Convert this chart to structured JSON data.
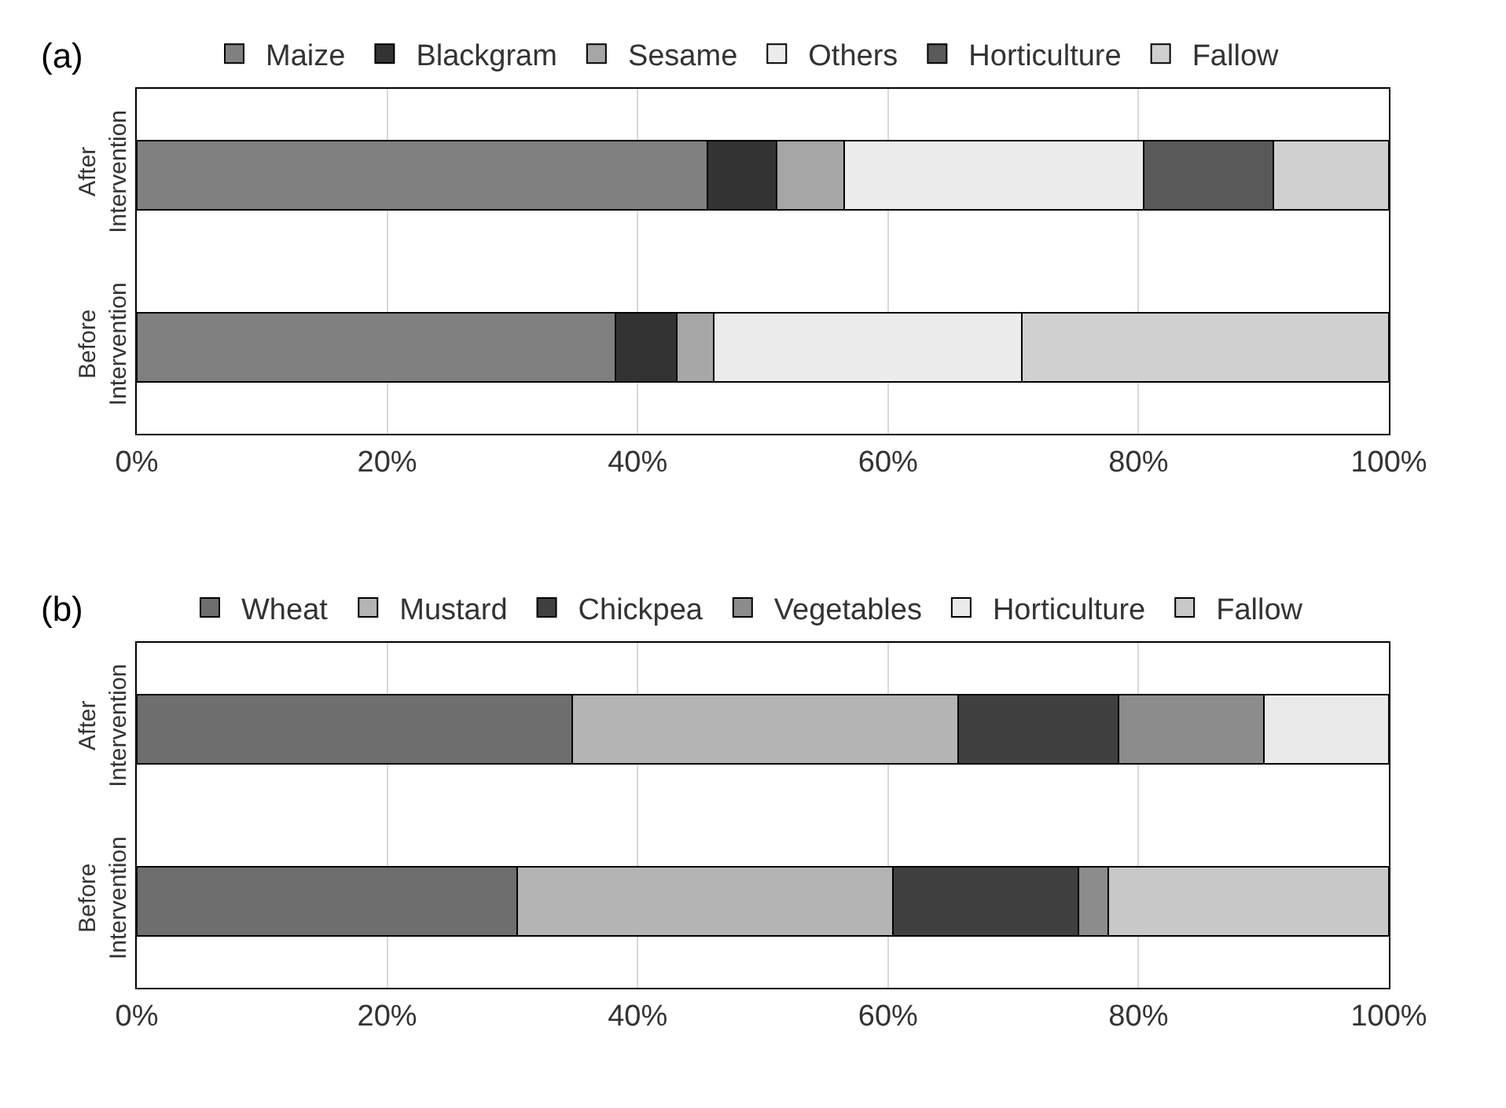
{
  "chart_data": [
    {
      "type": "bar",
      "title": "(a)",
      "orientation": "horizontal",
      "stacked": true,
      "categories": [
        "After Intervention",
        "Before Intervention"
      ],
      "series": [
        {
          "name": "Maize",
          "color": "#808080",
          "values": [
            45.6,
            38.2
          ]
        },
        {
          "name": "Blackgram",
          "color": "#333333",
          "values": [
            5.5,
            4.9
          ]
        },
        {
          "name": "Sesame",
          "color": "#a6a6a6",
          "values": [
            5.4,
            3.0
          ]
        },
        {
          "name": "Others",
          "color": "#ececec",
          "values": [
            23.9,
            24.6
          ]
        },
        {
          "name": "Horticulture",
          "color": "#595959",
          "values": [
            10.4,
            null
          ]
        },
        {
          "name": "Fallow",
          "color": "#d0d0d0",
          "values": [
            9.2,
            29.3
          ]
        }
      ],
      "xlim": [
        0,
        100
      ],
      "xticks": [
        {
          "value": 0,
          "label": "0%"
        },
        {
          "value": 20,
          "label": "20%"
        },
        {
          "value": 40,
          "label": "40%"
        },
        {
          "value": 60,
          "label": "60%"
        },
        {
          "value": 80,
          "label": "80%"
        },
        {
          "value": 100,
          "label": "100%"
        }
      ],
      "grid": "x",
      "legend": "top"
    },
    {
      "type": "bar",
      "title": "(b)",
      "orientation": "horizontal",
      "stacked": true,
      "categories": [
        "After Intervention",
        "Before Intervention"
      ],
      "series": [
        {
          "name": "Wheat",
          "color": "#6e6e6e",
          "values": [
            34.8,
            30.4
          ]
        },
        {
          "name": "Mustard",
          "color": "#b4b4b4",
          "values": [
            30.8,
            30.0
          ]
        },
        {
          "name": "Chickpea",
          "color": "#404040",
          "values": [
            12.8,
            14.8
          ]
        },
        {
          "name": "Vegetables",
          "color": "#8c8c8c",
          "values": [
            11.6,
            2.4
          ]
        },
        {
          "name": "Horticulture",
          "color": "#eaeaea",
          "values": [
            10.0,
            null
          ]
        },
        {
          "name": "Fallow",
          "color": "#c8c8c8",
          "values": [
            null,
            22.4
          ]
        }
      ],
      "xlim": [
        0,
        100
      ],
      "xticks": [
        {
          "value": 0,
          "label": "0%"
        },
        {
          "value": 20,
          "label": "20%"
        },
        {
          "value": 40,
          "label": "40%"
        },
        {
          "value": 60,
          "label": "60%"
        },
        {
          "value": 80,
          "label": "80%"
        },
        {
          "value": 100,
          "label": "100%"
        }
      ],
      "grid": "x",
      "legend": "top"
    }
  ]
}
